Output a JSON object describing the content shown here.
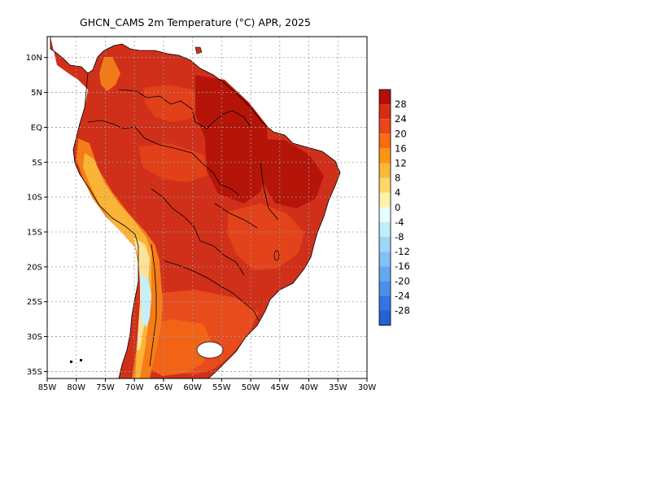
{
  "title": "GHCN_CAMS 2m Temperature (°C) APR, 2025",
  "lat_labels": [
    "10N",
    "5N",
    "EQ",
    "5S",
    "10S",
    "15S",
    "20S",
    "25S",
    "30S",
    "35S"
  ],
  "lon_labels": [
    "85W",
    "80W",
    "75W",
    "70W",
    "65W",
    "60W",
    "55W",
    "50W",
    "45W",
    "40W",
    "35W",
    "30W"
  ],
  "colorbar": {
    "labels": [
      "28",
      "24",
      "20",
      "16",
      "12",
      "8",
      "4",
      "0",
      "-4",
      "-8",
      "-12",
      "-16",
      "-20",
      "-24",
      "-28"
    ],
    "colors": [
      "#b40f0a",
      "#d42f12",
      "#e8461a",
      "#f86d12",
      "#fb9614",
      "#fbb737",
      "#fcd668",
      "#fdf2a8",
      "#e8fdfd",
      "#bfedfb",
      "#9fd7f7",
      "#83c0f3",
      "#63a9ee",
      "#4a90e8",
      "#3375e0",
      "#2660d6"
    ]
  },
  "colors": {
    "ocean": "#ffffff",
    "land_hot": "#d0301a",
    "frame": "#000000",
    "grid": "#9a9a9a"
  }
}
